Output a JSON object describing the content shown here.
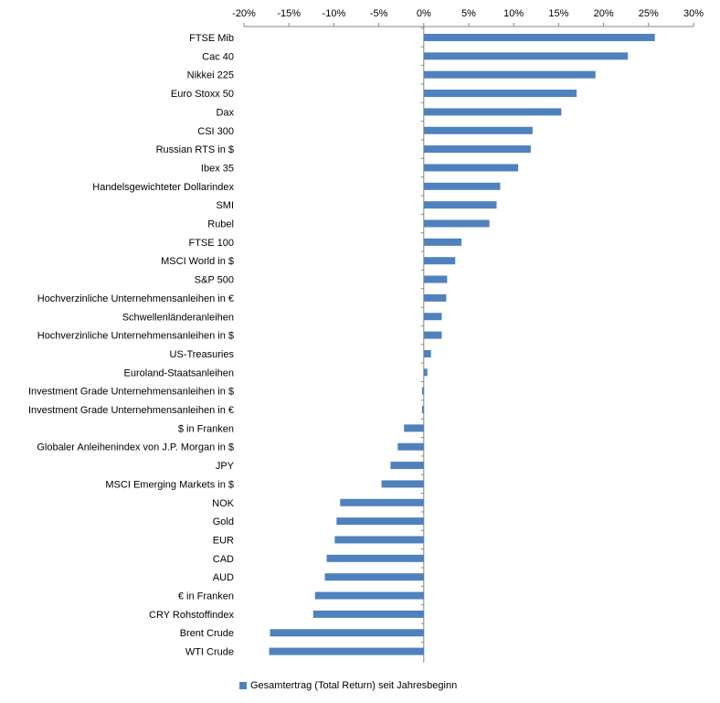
{
  "chart_data": {
    "type": "bar",
    "orientation": "horizontal",
    "x_axis_position": "top",
    "xlim": [
      -20,
      30
    ],
    "x_ticks": [
      -20,
      -15,
      -10,
      -5,
      0,
      5,
      10,
      15,
      20,
      25,
      30
    ],
    "x_tick_labels": [
      "-20%",
      "-15%",
      "-10%",
      "-5%",
      "0%",
      "5%",
      "10%",
      "15%",
      "20%",
      "25%",
      "30%"
    ],
    "gridlines": false,
    "legend_position": "bottom-center",
    "categories": [
      "FTSE Mib",
      "Cac 40",
      "Nikkei 225",
      "Euro Stoxx 50",
      "Dax",
      "CSI 300",
      "Russian RTS in $",
      "Ibex 35",
      "Handelsgewichteter Dollarindex",
      "SMI",
      "Rubel",
      "FTSE 100",
      "MSCI World in $",
      "S&P 500",
      "Hochverzinliche Unternehmensanleihen in €",
      "Schwellenländeranleihen",
      "Hochverzinliche Unternehmensanleihen in $",
      "US-Treasuries",
      "Euroland-Staatsanleihen",
      "Investment Grade Unternehmensanleihen in $",
      "Investment Grade Unternehmensanleihen in €",
      "$ in Franken",
      "Globaler Anleihenindex von J.P. Morgan in $",
      "JPY",
      "MSCI Emerging Markets in $",
      "NOK",
      "Gold",
      "EUR",
      "CAD",
      "AUD",
      "€ in Franken",
      "CRY Rohstoffindex",
      "Brent Crude",
      "WTI Crude"
    ],
    "series": [
      {
        "name": "Gesamtertrag (Total Return) seit Jahresbeginn",
        "color": "#4F81BD",
        "values": [
          25.7,
          22.7,
          19.1,
          17.0,
          15.3,
          12.1,
          11.9,
          10.5,
          8.5,
          8.1,
          7.3,
          4.2,
          3.5,
          2.6,
          2.5,
          2.0,
          2.0,
          0.8,
          0.4,
          -0.2,
          -0.2,
          -2.2,
          -2.9,
          -3.7,
          -4.7,
          -9.3,
          -9.7,
          -9.9,
          -10.8,
          -11.0,
          -12.1,
          -12.3,
          -17.1,
          -17.2
        ]
      }
    ]
  }
}
